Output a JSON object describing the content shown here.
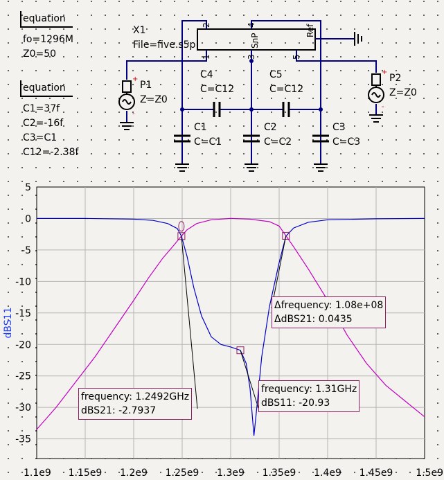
{
  "equations": {
    "eq1": {
      "title": "equation",
      "lines": [
        "fo=1296M",
        "Z0=50"
      ]
    },
    "eq2": {
      "title": "equation",
      "lines": [
        "C1=37f",
        "C2=-16f",
        "C3=C1",
        "C12=-2.38f"
      ]
    }
  },
  "subckt": {
    "name": "X1",
    "file": "File=five.s5p",
    "pins": [
      "2",
      "4",
      "Ref",
      "1",
      "3",
      "SnP",
      "5"
    ]
  },
  "ports": [
    {
      "name": "P1",
      "z": "Z=Z0",
      "plus": "+",
      "minus": "-"
    },
    {
      "name": "P2",
      "z": "Z=Z0",
      "plus": "+",
      "minus": "-"
    }
  ],
  "caps": [
    {
      "name": "C4",
      "value": "C=C12"
    },
    {
      "name": "C5",
      "value": "C=C12"
    },
    {
      "name": "C1",
      "value": "C=C1"
    },
    {
      "name": "C2",
      "value": "C=C2"
    },
    {
      "name": "C3",
      "value": "C=C3"
    }
  ],
  "chart_data": {
    "type": "line",
    "ylabel": "dBS11",
    "xlim": [
      1100000000,
      1500000000
    ],
    "ylim": [
      -37,
      5
    ],
    "yticks": [
      5,
      0,
      -5,
      -10,
      -15,
      -20,
      -25,
      -30,
      -35
    ],
    "xticks": [
      1100000000,
      1150000000,
      1200000000,
      1250000000,
      1300000000,
      1350000000,
      1400000000,
      1450000000,
      1500000000
    ],
    "xtick_labels": [
      "1.1e9",
      "1.15e9",
      "1.2e9",
      "1.25e9",
      "1.3e9",
      "1.35e9",
      "1.4e9",
      "1.45e9",
      "1.5e9"
    ],
    "grid": true,
    "series": [
      {
        "name": "dBS11",
        "color": "#0000c8",
        "points": [
          [
            1100000000,
            0
          ],
          [
            1150000000,
            0
          ],
          [
            1200000000,
            -0.1
          ],
          [
            1220000000,
            -0.3
          ],
          [
            1235000000,
            -0.8
          ],
          [
            1245000000,
            -1.6
          ],
          [
            1249200000,
            -2.79
          ],
          [
            1255000000,
            -6
          ],
          [
            1262000000,
            -11
          ],
          [
            1270000000,
            -15.5
          ],
          [
            1280000000,
            -18.8
          ],
          [
            1290000000,
            -20
          ],
          [
            1300000000,
            -20.4
          ],
          [
            1310000000,
            -20.93
          ],
          [
            1316000000,
            -23
          ],
          [
            1320000000,
            -27
          ],
          [
            1324000000,
            -34.5
          ],
          [
            1327000000,
            -30
          ],
          [
            1332000000,
            -22
          ],
          [
            1340000000,
            -14
          ],
          [
            1350000000,
            -7
          ],
          [
            1357000000,
            -2.8
          ],
          [
            1365000000,
            -1.5
          ],
          [
            1380000000,
            -0.6
          ],
          [
            1400000000,
            -0.2
          ],
          [
            1450000000,
            -0.05
          ],
          [
            1500000000,
            0
          ]
        ]
      },
      {
        "name": "dBS21",
        "color": "#c000c0",
        "points": [
          [
            1100000000,
            -33.5
          ],
          [
            1120000000,
            -30
          ],
          [
            1140000000,
            -26
          ],
          [
            1160000000,
            -22
          ],
          [
            1180000000,
            -17.5
          ],
          [
            1200000000,
            -13
          ],
          [
            1215000000,
            -9.5
          ],
          [
            1230000000,
            -6.3
          ],
          [
            1240000000,
            -4.5
          ],
          [
            1249200000,
            -2.79
          ],
          [
            1255000000,
            -1.8
          ],
          [
            1265000000,
            -0.8
          ],
          [
            1280000000,
            -0.2
          ],
          [
            1300000000,
            0
          ],
          [
            1320000000,
            -0.1
          ],
          [
            1340000000,
            -0.5
          ],
          [
            1350000000,
            -1.2
          ],
          [
            1357000000,
            -2.75
          ],
          [
            1365000000,
            -4.5
          ],
          [
            1380000000,
            -8
          ],
          [
            1400000000,
            -13
          ],
          [
            1420000000,
            -18.5
          ],
          [
            1440000000,
            -23
          ],
          [
            1460000000,
            -26.5
          ],
          [
            1480000000,
            -29
          ],
          [
            1500000000,
            -31.5
          ]
        ]
      }
    ],
    "markers": [
      {
        "x": 1249200000,
        "y": -2.79,
        "text1": "frequency: 1.2492GHz",
        "text2": "dBS21: -2.7937"
      },
      {
        "x": 1310000000,
        "y": -20.93,
        "text1": "frequency: 1.31GHz",
        "text2": "dBS11: -20.93"
      },
      {
        "x": 1357000000,
        "y": -2.75,
        "text1": "Δfrequency: 1.08e+08",
        "text2": "ΔdBS21: 0.0435"
      }
    ]
  }
}
